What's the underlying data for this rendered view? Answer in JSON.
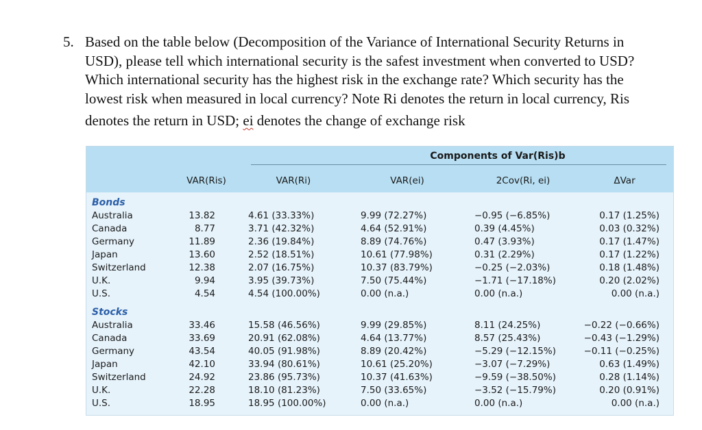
{
  "question": {
    "number": "5.",
    "lines": [
      "Based on the table below (Decomposition of the Variance of International Security Returns in",
      "USD), please tell which international security is the safest investment when converted to USD?",
      "Which international security has the highest risk in the exchange rate? Which security has the",
      "lowest risk when measured in local currency?  Note Ri denotes the return in local currency, Ris"
    ],
    "last_line_prefix": "denotes the return in USD; ",
    "last_line_marked": "ei",
    "last_line_suffix": " denotes the change of exchange risk"
  },
  "table": {
    "components_title": "Components of Var(Ris)b",
    "columns": [
      "VAR(Ris)",
      "VAR(Ri)",
      "VAR(ei)",
      "2Cov(Ri, ei)",
      "ΔVar"
    ],
    "sections": [
      {
        "label": "Bonds",
        "rows": [
          [
            "Australia",
            "13.82",
            "4.61 (33.33%)",
            "9.99 (72.27%)",
            "−0.95 (−6.85%)",
            "0.17 (1.25%)"
          ],
          [
            "Canada",
            "8.77",
            "3.71 (42.32%)",
            "4.64 (52.91%)",
            "0.39 (4.45%)",
            "0.03 (0.32%)"
          ],
          [
            "Germany",
            "11.89",
            "2.36 (19.84%)",
            "8.89 (74.76%)",
            "0.47 (3.93%)",
            "0.17 (1.47%)"
          ],
          [
            "Japan",
            "13.60",
            "2.52 (18.51%)",
            "10.61 (77.98%)",
            "0.31 (2.29%)",
            "0.17 (1.22%)"
          ],
          [
            "Switzerland",
            "12.38",
            "2.07 (16.75%)",
            "10.37 (83.79%)",
            "−0.25 (−2.03%)",
            "0.18 (1.48%)"
          ],
          [
            "U.K.",
            "9.94",
            "3.95 (39.73%)",
            "7.50 (75.44%)",
            "−1.71 (−17.18%)",
            "0.20 (2.02%)"
          ],
          [
            "U.S.",
            "4.54",
            "4.54 (100.00%)",
            "0.00 (n.a.)",
            "0.00 (n.a.)",
            "0.00 (n.a.)"
          ]
        ]
      },
      {
        "label": "Stocks",
        "rows": [
          [
            "Australia",
            "33.46",
            "15.58 (46.56%)",
            "9.99 (29.85%)",
            "8.11 (24.25%)",
            "−0.22 (−0.66%)"
          ],
          [
            "Canada",
            "33.69",
            "20.91 (62.08%)",
            "4.64 (13.77%)",
            "8.57 (25.43%)",
            "−0.43 (−1.29%)"
          ],
          [
            "Germany",
            "43.54",
            "40.05 (91.98%)",
            "8.89 (20.42%)",
            "−5.29 (−12.15%)",
            "−0.11 (−0.25%)"
          ],
          [
            "Japan",
            "42.10",
            "33.94 (80.61%)",
            "10.61 (25.20%)",
            "−3.07 (−7.29%)",
            "0.63 (1.49%)"
          ],
          [
            "Switzerland",
            "24.92",
            "23.86 (95.73%)",
            "10.37 (41.63%)",
            "−9.59 (−38.50%)",
            "0.28 (1.14%)"
          ],
          [
            "U.K.",
            "22.28",
            "18.10 (81.23%)",
            "7.50 (33.65%)",
            "−3.52 (−15.79%)",
            "0.20 (0.91%)"
          ],
          [
            "U.S.",
            "18.95",
            "18.95 (100.00%)",
            "0.00 (n.a.)",
            "0.00 (n.a.)",
            "0.00 (n.a.)"
          ]
        ]
      }
    ]
  }
}
